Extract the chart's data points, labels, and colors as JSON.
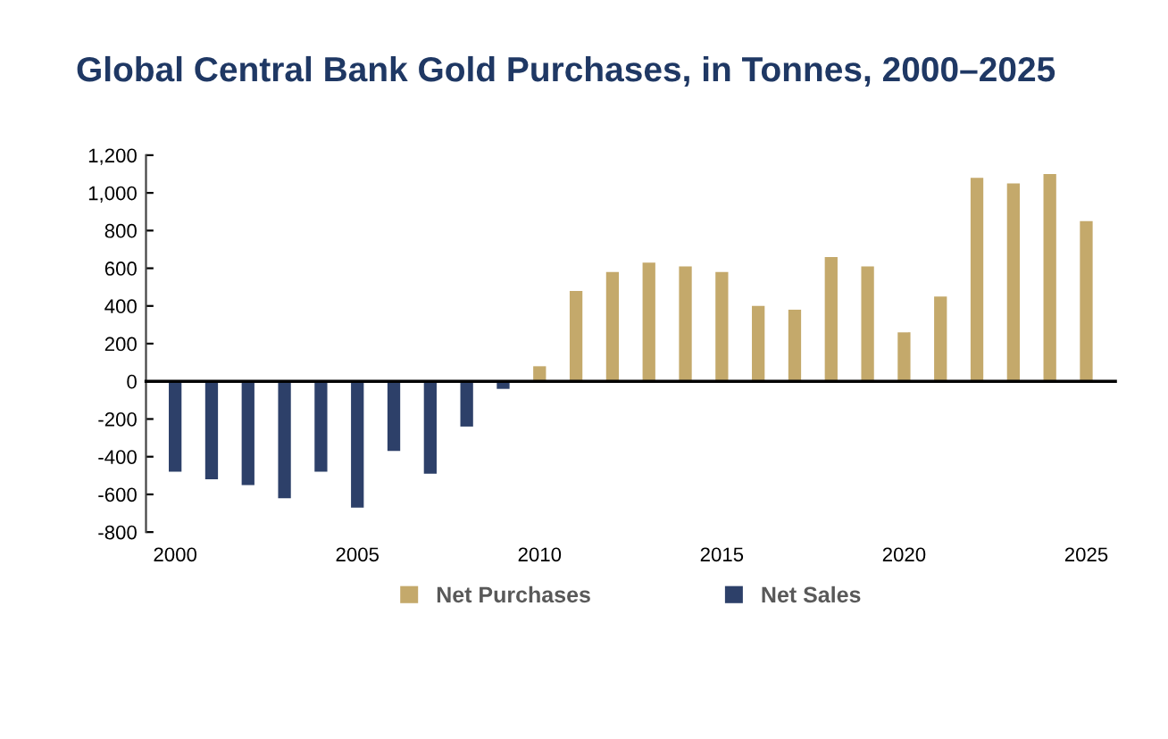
{
  "chart_data": {
    "type": "bar",
    "title": "Global Central Bank Gold Purchases, in Tonnes, 2000–2025",
    "categories": [
      "2000",
      null,
      null,
      null,
      null,
      "2005",
      null,
      null,
      null,
      null,
      "2010",
      null,
      null,
      null,
      null,
      "2015",
      null,
      null,
      null,
      null,
      "2020",
      null,
      null,
      null,
      null,
      "2025"
    ],
    "series": [
      {
        "name": "Net Purchases",
        "color": "#c4a96b",
        "values": [
          null,
          null,
          null,
          null,
          null,
          null,
          null,
          null,
          null,
          null,
          80,
          480,
          580,
          630,
          610,
          580,
          400,
          380,
          660,
          610,
          260,
          450,
          1080,
          1050,
          1100,
          850
        ]
      },
      {
        "name": "Net Sales",
        "color": "#2d4069",
        "values": [
          -480,
          -520,
          -550,
          -620,
          -480,
          -670,
          -370,
          -490,
          -240,
          -40,
          null,
          null,
          null,
          null,
          null,
          null,
          null,
          null,
          null,
          null,
          null,
          null,
          null,
          null,
          null,
          null
        ]
      }
    ],
    "ylim": [
      -800,
      1200
    ],
    "yticks": [
      {
        "value": -800,
        "label": "-800"
      },
      {
        "value": -600,
        "label": "-600"
      },
      {
        "value": -400,
        "label": "-400"
      },
      {
        "value": -200,
        "label": "-200"
      },
      0,
      200,
      400,
      600,
      800,
      {
        "value": 1000,
        "label": "1,000"
      },
      {
        "value": 1200,
        "label": "1,200"
      }
    ],
    "legend": "bottom"
  }
}
